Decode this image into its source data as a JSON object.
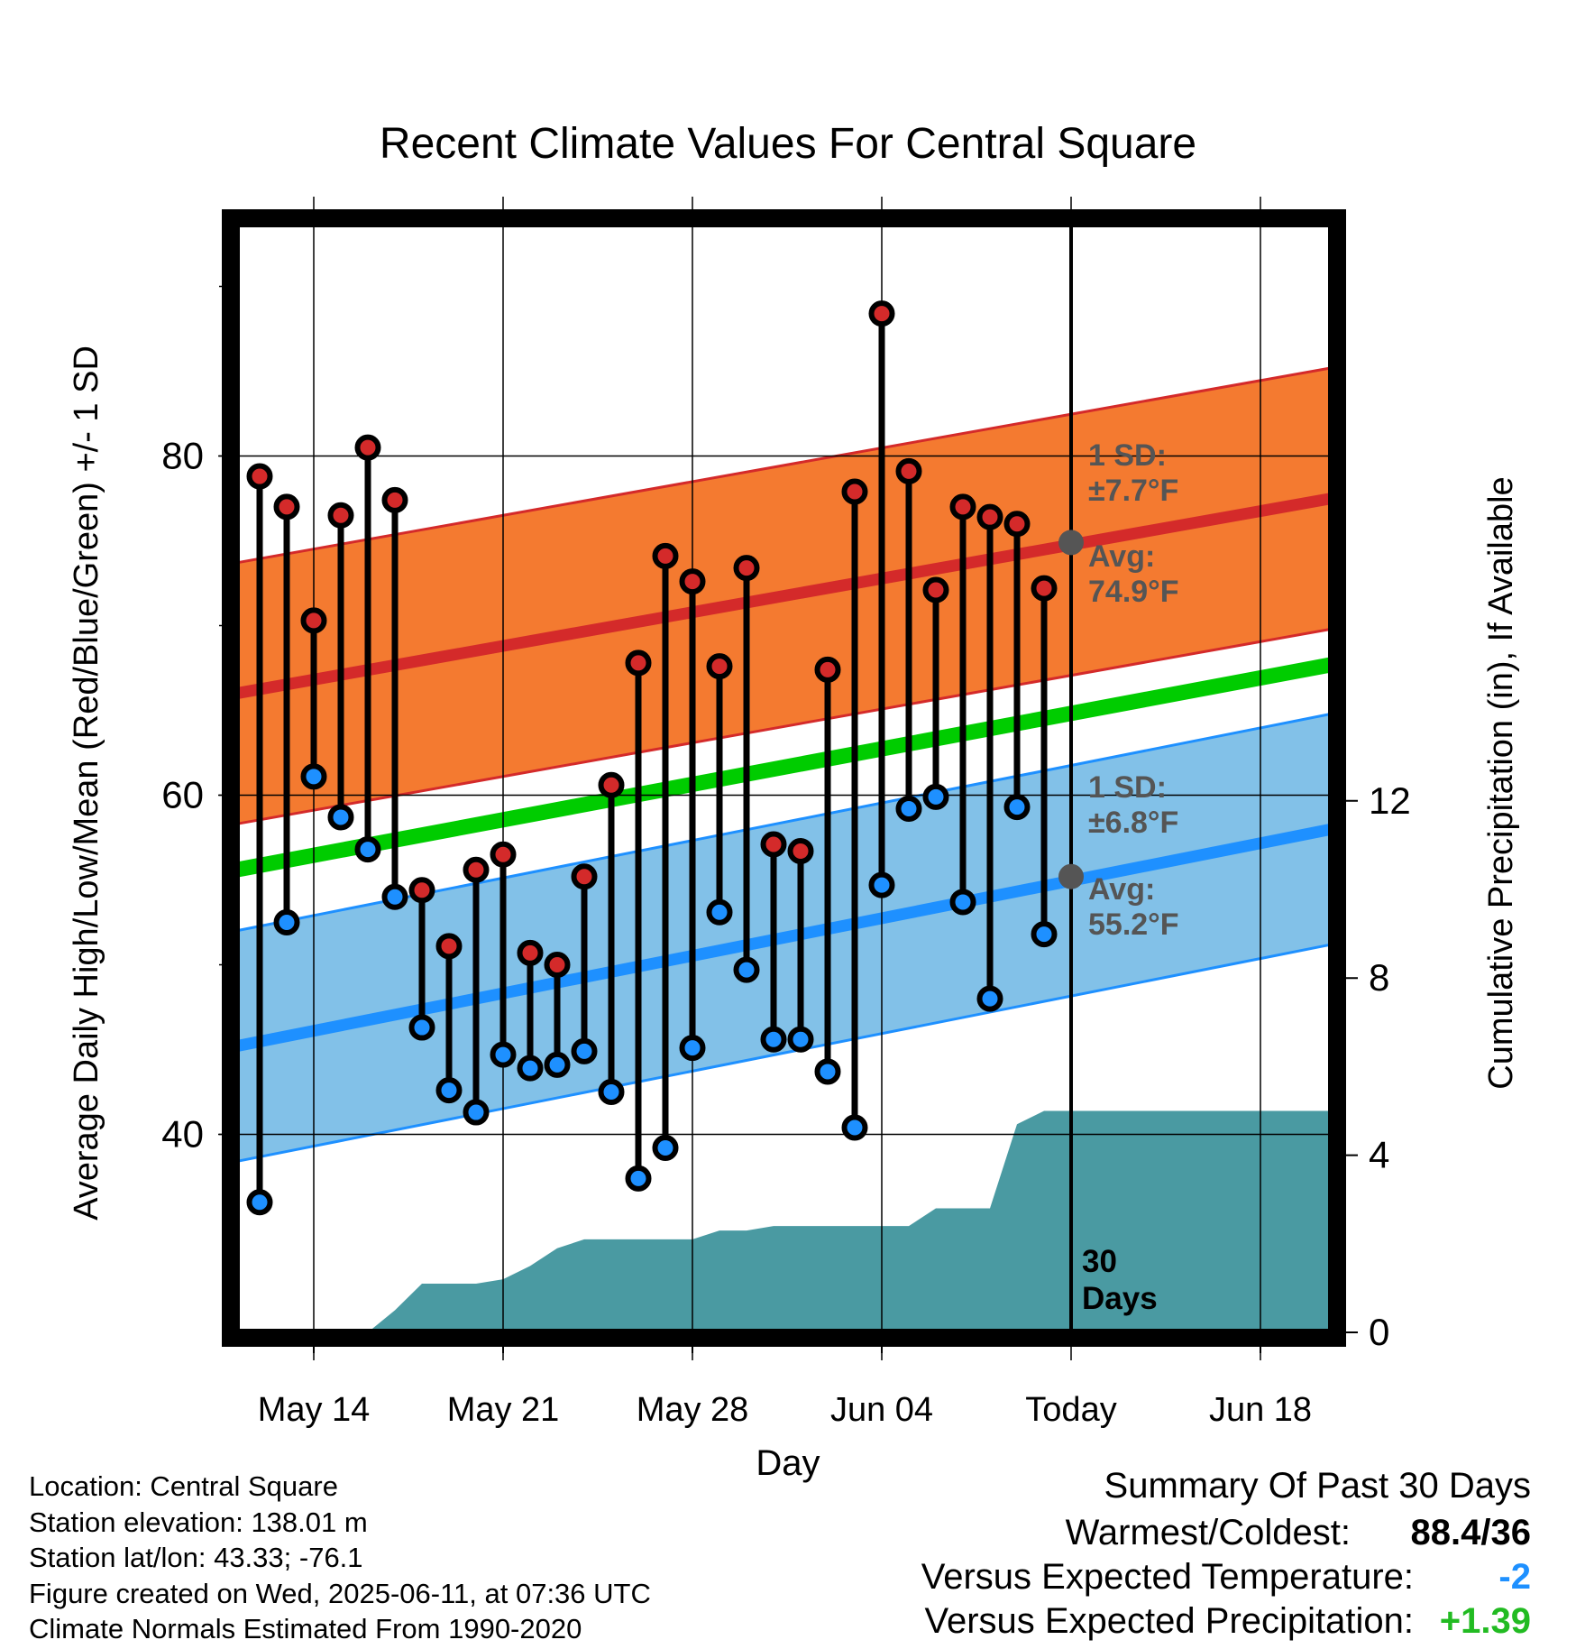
{
  "chart_data": {
    "type": "line",
    "title": "Recent Climate Values For Central Square",
    "xlabel": "Day",
    "ylabel_left": "Average Daily High/Low/Mean (Red/Blue/Green) +/- 1 SD",
    "ylabel_right": "Cumulative Precipitation (in), If Available",
    "x_ticks": [
      "May 14",
      "May 21",
      "May 28",
      "Jun 04",
      "Today",
      "Jun 18"
    ],
    "y_ticks_left": [
      "40",
      "60",
      "80"
    ],
    "y_ticks_right": [
      "0",
      "4",
      "8",
      "12"
    ],
    "today_marker_label": "30\nDays",
    "normals": {
      "high_avg_start": 66.0,
      "high_avg_end": 77.5,
      "high_sd": 7.7,
      "low_avg_start": 45.2,
      "low_avg_end": 58.0,
      "low_sd": 6.8,
      "mean_start": 55.6,
      "mean_end": 67.7
    },
    "high_annotation": {
      "sd_label": "1 SD:",
      "sd_value": "±7.7°F",
      "avg_label": "Avg:",
      "avg_value": "74.9°F",
      "today_avg": 74.9
    },
    "low_annotation": {
      "sd_label": "1 SD:",
      "sd_value": "±6.8°F",
      "avg_label": "Avg:",
      "avg_value": "55.2°F",
      "today_avg": 55.2
    },
    "days": [
      {
        "d": -30,
        "high": 78.8,
        "low": 36.0
      },
      {
        "d": -29,
        "high": 77.0,
        "low": 52.5
      },
      {
        "d": -28,
        "high": 70.3,
        "low": 61.1
      },
      {
        "d": -27,
        "high": 76.5,
        "low": 58.7
      },
      {
        "d": -26,
        "high": 80.5,
        "low": 56.8
      },
      {
        "d": -25,
        "high": 77.4,
        "low": 54.0
      },
      {
        "d": -24,
        "high": 54.4,
        "low": 46.3
      },
      {
        "d": -23,
        "high": 51.1,
        "low": 42.6
      },
      {
        "d": -22,
        "high": 55.6,
        "low": 41.3
      },
      {
        "d": -21,
        "high": 56.5,
        "low": 44.7
      },
      {
        "d": -20,
        "high": 50.7,
        "low": 43.9
      },
      {
        "d": -19,
        "high": 50.0,
        "low": 44.1
      },
      {
        "d": -18,
        "high": 55.2,
        "low": 44.9
      },
      {
        "d": -17,
        "high": 60.6,
        "low": 42.5
      },
      {
        "d": -16,
        "high": 67.8,
        "low": 37.4
      },
      {
        "d": -15,
        "high": 74.1,
        "low": 39.2
      },
      {
        "d": -14,
        "high": 72.6,
        "low": 45.1
      },
      {
        "d": -13,
        "high": 67.6,
        "low": 53.1
      },
      {
        "d": -12,
        "high": 73.4,
        "low": 49.7
      },
      {
        "d": -11,
        "high": 57.1,
        "low": 45.6
      },
      {
        "d": -10,
        "high": 56.7,
        "low": 45.6
      },
      {
        "d": -9,
        "high": 67.4,
        "low": 43.7
      },
      {
        "d": -8,
        "high": 77.9,
        "low": 40.4
      },
      {
        "d": -7,
        "high": 88.4,
        "low": 54.7
      },
      {
        "d": -6,
        "high": 79.1,
        "low": 59.2
      },
      {
        "d": -5,
        "high": 72.1,
        "low": 59.9
      },
      {
        "d": -4,
        "high": 77.0,
        "low": 53.7
      },
      {
        "d": -3,
        "high": 76.4,
        "low": 48.0
      },
      {
        "d": -2,
        "high": 76.0,
        "low": 59.3
      },
      {
        "d": -1,
        "high": 72.2,
        "low": 51.8
      }
    ],
    "precip_cumulative": [
      {
        "d": -26,
        "p": 0.0
      },
      {
        "d": -25,
        "p": 0.5
      },
      {
        "d": -24,
        "p": 1.1
      },
      {
        "d": -23,
        "p": 1.1
      },
      {
        "d": -22,
        "p": 1.1
      },
      {
        "d": -21,
        "p": 1.2
      },
      {
        "d": -20,
        "p": 1.5
      },
      {
        "d": -19,
        "p": 1.9
      },
      {
        "d": -18,
        "p": 2.1
      },
      {
        "d": -17,
        "p": 2.1
      },
      {
        "d": -16,
        "p": 2.1
      },
      {
        "d": -15,
        "p": 2.1
      },
      {
        "d": -14,
        "p": 2.1
      },
      {
        "d": -13,
        "p": 2.3
      },
      {
        "d": -12,
        "p": 2.3
      },
      {
        "d": -11,
        "p": 2.4
      },
      {
        "d": -10,
        "p": 2.4
      },
      {
        "d": -9,
        "p": 2.4
      },
      {
        "d": -8,
        "p": 2.4
      },
      {
        "d": -7,
        "p": 2.4
      },
      {
        "d": -6,
        "p": 2.4
      },
      {
        "d": -5,
        "p": 2.8
      },
      {
        "d": -4,
        "p": 2.8
      },
      {
        "d": -3,
        "p": 2.8
      },
      {
        "d": -2,
        "p": 4.7
      },
      {
        "d": -1,
        "p": 5.0
      },
      {
        "d": 0,
        "p": 5.0
      },
      {
        "d": 10,
        "p": 5.0
      }
    ],
    "colors": {
      "high_band": "#f47a30",
      "high_line": "#d42a2a",
      "low_band": "#82c1e8",
      "low_line": "#1e90ff",
      "mean_line": "#00cc00",
      "precip": "#4a9aa2",
      "high_dot": "#d42a2a",
      "low_dot": "#1e90ff",
      "annotation": "#555555"
    }
  },
  "footer": {
    "location": "Location: Central Square",
    "elevation": "Station elevation: 138.01 m",
    "latlon": "Station lat/lon: 43.33; -76.1",
    "created": "Figure created on Wed, 2025-06-11, at 07:36 UTC",
    "normals": "Climate Normals Estimated From 1990-2020"
  },
  "summary": {
    "title": "Summary Of Past 30 Days",
    "warm_cold_label": "Warmest/Coldest:",
    "warm_cold_value": "88.4/36",
    "temp_label": "Versus Expected Temperature:",
    "temp_value": "-2",
    "temp_color": "#1e90ff",
    "precip_label": "Versus Expected Precipitation:",
    "precip_value": "+1.39",
    "precip_color": "#22bb22"
  }
}
